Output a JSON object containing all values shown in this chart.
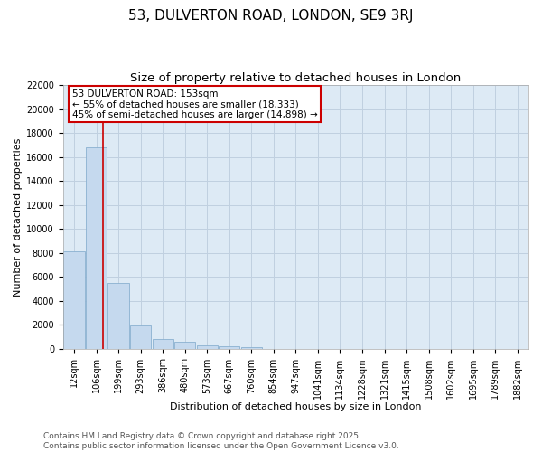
{
  "title": "53, DULVERTON ROAD, LONDON, SE9 3RJ",
  "subtitle": "Size of property relative to detached houses in London",
  "xlabel": "Distribution of detached houses by size in London",
  "ylabel": "Number of detached properties",
  "bar_labels": [
    "12sqm",
    "106sqm",
    "199sqm",
    "293sqm",
    "386sqm",
    "480sqm",
    "573sqm",
    "667sqm",
    "760sqm",
    "854sqm",
    "947sqm",
    "1041sqm",
    "1134sqm",
    "1228sqm",
    "1321sqm",
    "1415sqm",
    "1508sqm",
    "1602sqm",
    "1695sqm",
    "1789sqm",
    "1882sqm"
  ],
  "bar_values": [
    8100,
    16800,
    5500,
    1900,
    800,
    600,
    300,
    200,
    150,
    0,
    0,
    0,
    0,
    0,
    0,
    0,
    0,
    0,
    0,
    0,
    0
  ],
  "bar_color": "#c5d9ee",
  "bar_edgecolor": "#8ab0d0",
  "bar_linewidth": 0.6,
  "redline_x": 1.3,
  "annotation_text": "53 DULVERTON ROAD: 153sqm\n← 55% of detached houses are smaller (18,333)\n45% of semi-detached houses are larger (14,898) →",
  "annotation_box_color": "#cc0000",
  "ylim": [
    0,
    22000
  ],
  "yticks": [
    0,
    2000,
    4000,
    6000,
    8000,
    10000,
    12000,
    14000,
    16000,
    18000,
    20000,
    22000
  ],
  "grid_color": "#c0d0e0",
  "plot_background": "#ddeaf5",
  "footer": "Contains HM Land Registry data © Crown copyright and database right 2025.\nContains public sector information licensed under the Open Government Licence v3.0.",
  "title_fontsize": 11,
  "subtitle_fontsize": 9.5,
  "label_fontsize": 8,
  "tick_fontsize": 7,
  "footer_fontsize": 6.5
}
